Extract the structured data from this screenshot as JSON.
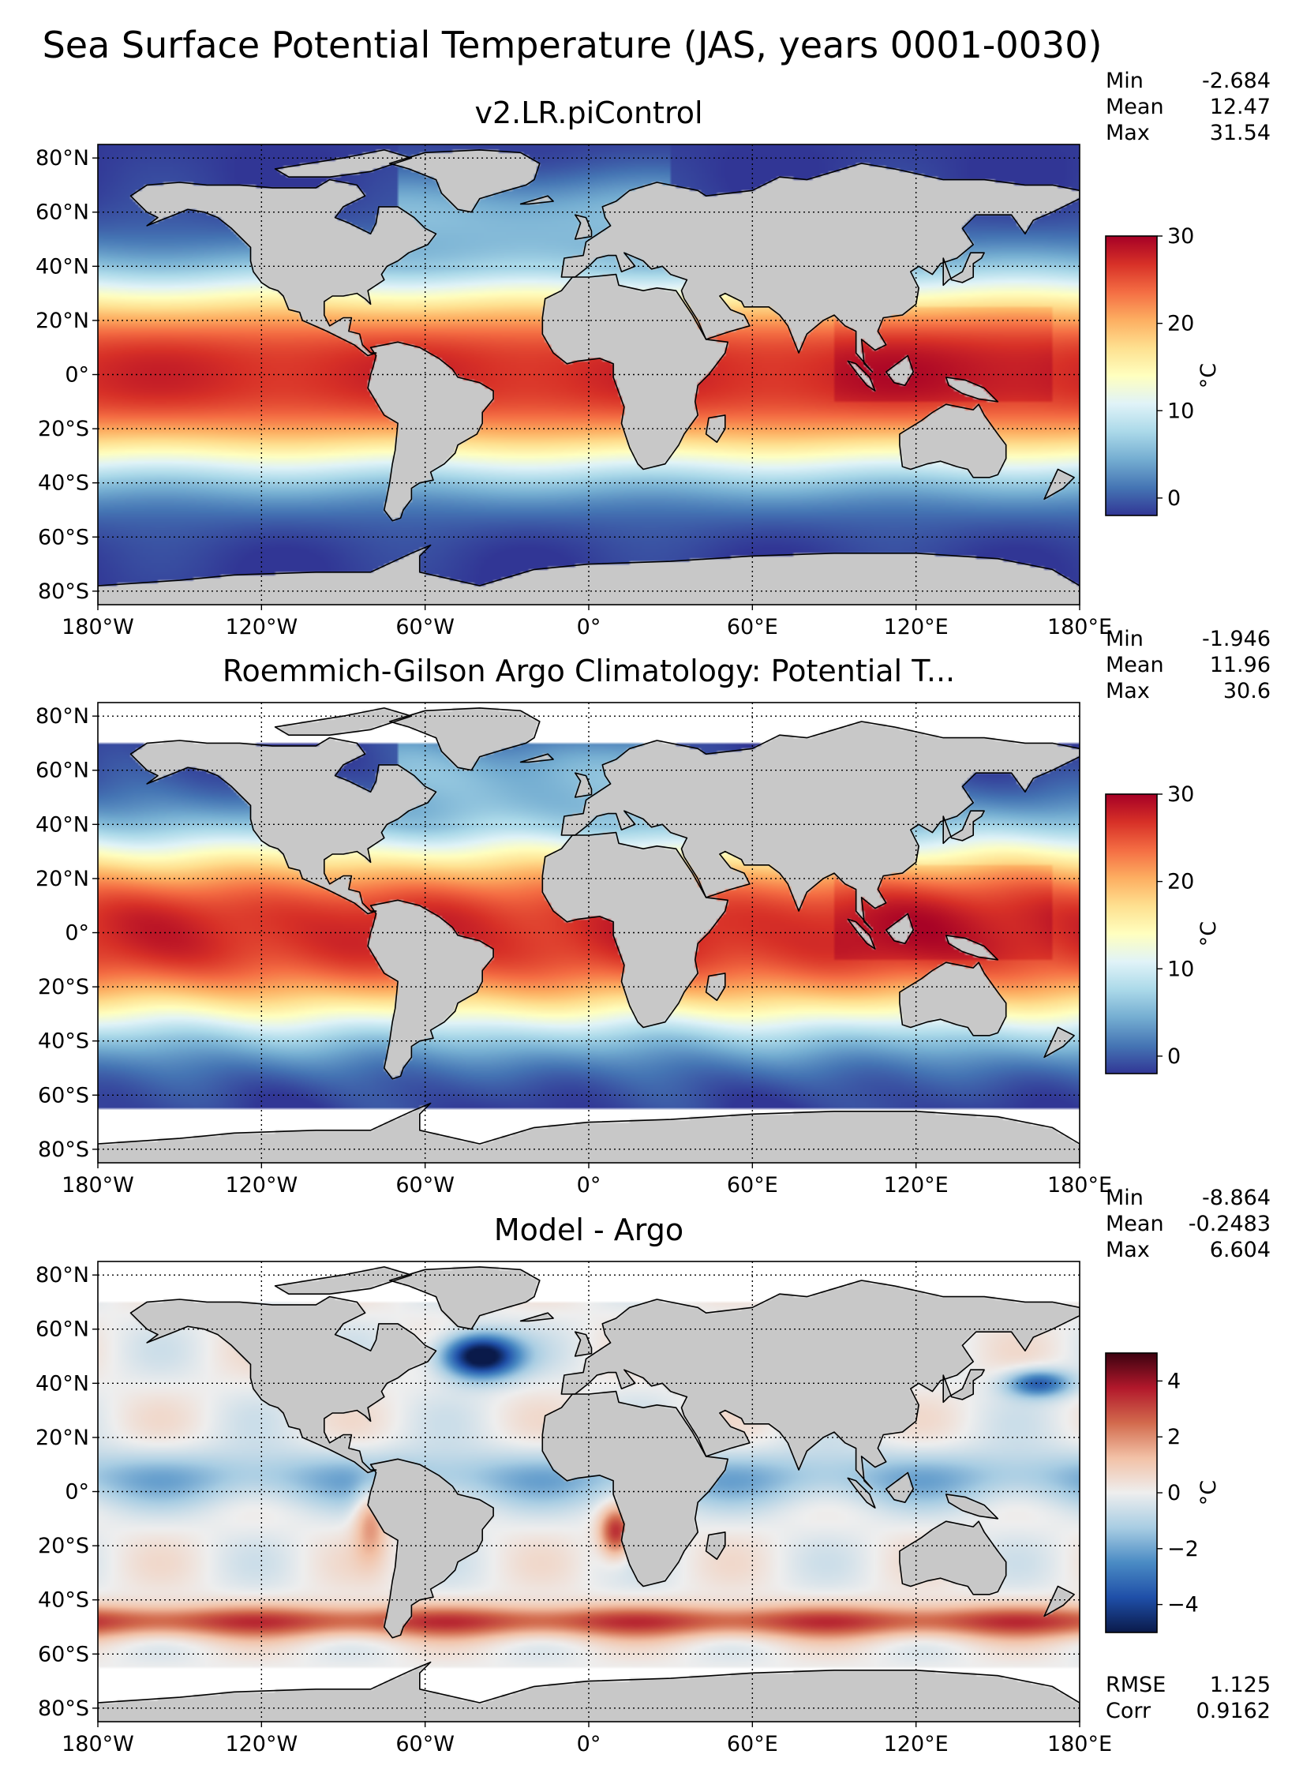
{
  "figure_title": "Sea Surface Potential Temperature (JAS, years 0001-0030)",
  "colors": {
    "land": "#c8c8c8",
    "missing": "#ffffff",
    "seq_colormap": [
      "#313695",
      "#4575b4",
      "#74add1",
      "#abd9e9",
      "#e0f3f8",
      "#ffffbf",
      "#fee090",
      "#fdae61",
      "#f46d43",
      "#d73027",
      "#a50026"
    ],
    "div_colormap": [
      "#0a1a4a",
      "#1f4fa8",
      "#4a8bc4",
      "#a8cde3",
      "#eeeeee",
      "#f2c1a6",
      "#d26a4d",
      "#b2182b",
      "#3d0210"
    ]
  },
  "chart_data": [
    {
      "type": "heatmap",
      "title": "v2.LR.piControl",
      "x_ticks": [
        "180°W",
        "120°W",
        "60°W",
        "0°",
        "60°E",
        "120°E",
        "180°E"
      ],
      "y_ticks": [
        "80°N",
        "60°N",
        "40°N",
        "20°N",
        "0°",
        "20°S",
        "40°S",
        "60°S",
        "80°S"
      ],
      "xlim": [
        -180,
        180
      ],
      "ylim": [
        -85,
        85
      ],
      "grid": true,
      "stats": [
        {
          "label": "Min",
          "value": "-2.684"
        },
        {
          "label": "Mean",
          "value": "12.47"
        },
        {
          "label": "Max",
          "value": "31.54"
        }
      ],
      "colorbar": {
        "label": "°C",
        "range": [
          -2,
          30
        ],
        "ticks": [
          "0",
          "10",
          "20",
          "30"
        ],
        "tick_values": [
          0,
          10,
          20,
          30
        ],
        "colormap": "seq_colormap"
      },
      "field": "model",
      "coverage_south_lat": -85,
      "coverage_north_lat": 85
    },
    {
      "type": "heatmap",
      "title": "Roemmich-Gilson Argo Climatology: Potential T...",
      "x_ticks": [
        "180°W",
        "120°W",
        "60°W",
        "0°",
        "60°E",
        "120°E",
        "180°E"
      ],
      "y_ticks": [
        "80°N",
        "60°N",
        "40°N",
        "20°N",
        "0°",
        "20°S",
        "40°S",
        "60°S",
        "80°S"
      ],
      "xlim": [
        -180,
        180
      ],
      "ylim": [
        -85,
        85
      ],
      "grid": true,
      "stats": [
        {
          "label": "Min",
          "value": "-1.946"
        },
        {
          "label": "Mean",
          "value": "11.96"
        },
        {
          "label": "Max",
          "value": "30.6"
        }
      ],
      "colorbar": {
        "label": "°C",
        "range": [
          -2,
          30
        ],
        "ticks": [
          "0",
          "10",
          "20",
          "30"
        ],
        "tick_values": [
          0,
          10,
          20,
          30
        ],
        "colormap": "seq_colormap"
      },
      "field": "obs",
      "coverage_south_lat": -65,
      "coverage_north_lat": 70
    },
    {
      "type": "heatmap",
      "title": "Model - Argo",
      "x_ticks": [
        "180°W",
        "120°W",
        "60°W",
        "0°",
        "60°E",
        "120°E",
        "180°E"
      ],
      "y_ticks": [
        "80°N",
        "60°N",
        "40°N",
        "20°N",
        "0°",
        "20°S",
        "40°S",
        "60°S",
        "80°S"
      ],
      "xlim": [
        -180,
        180
      ],
      "ylim": [
        -85,
        85
      ],
      "grid": true,
      "stats": [
        {
          "label": "Min",
          "value": "-8.864"
        },
        {
          "label": "Mean",
          "value": "-0.2483"
        },
        {
          "label": "Max",
          "value": "6.604"
        }
      ],
      "extra_stats": [
        {
          "label": "RMSE",
          "value": "1.125"
        },
        {
          "label": "Corr",
          "value": "0.9162"
        }
      ],
      "colorbar": {
        "label": "°C",
        "range": [
          -5,
          5
        ],
        "ticks": [
          "4",
          "2",
          "0",
          "−2",
          "−4"
        ],
        "tick_values": [
          4,
          2,
          0,
          -2,
          -4
        ],
        "colormap": "div_colormap"
      },
      "field": "bias",
      "coverage_south_lat": -65,
      "coverage_north_lat": 70
    }
  ]
}
